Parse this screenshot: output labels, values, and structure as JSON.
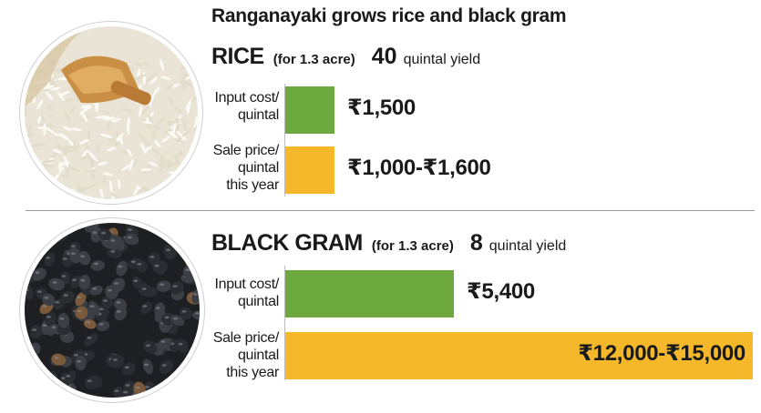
{
  "chart_data": {
    "type": "bar",
    "title": "Ranganayaki grows rice and black gram",
    "colors": {
      "input_cost": "#6ea93f",
      "sale_price": "#f6b82b"
    },
    "sections": [
      {
        "id": "rice",
        "crop": "RICE",
        "area": "(for 1.3 acre)",
        "yield": "40",
        "yield_unit": "quintal yield",
        "image": "rice-grains-photo",
        "rows": [
          {
            "label": [
              "Input cost/",
              "quintal"
            ],
            "value": 1500,
            "text": "₹1,500",
            "color": "#6ea93f"
          },
          {
            "label": [
              "Sale price/",
              "quintal",
              "this year"
            ],
            "value": [
              1000,
              1600
            ],
            "text": "₹1,000-₹1,600",
            "color": "#f6b82b"
          }
        ]
      },
      {
        "id": "black_gram",
        "crop": "BLACK GRAM",
        "area": "(for 1.3 acre)",
        "yield": "8",
        "yield_unit": "quintal yield",
        "image": "black-gram-photo",
        "rows": [
          {
            "label": [
              "Input cost/",
              "quintal"
            ],
            "value": 5400,
            "text": "₹5,400",
            "color": "#6ea93f"
          },
          {
            "label": [
              "Sale price/",
              "quintal",
              "this year"
            ],
            "value": [
              12000,
              15000
            ],
            "text": "₹12,000-₹15,000",
            "color": "#f6b82b"
          }
        ]
      }
    ]
  }
}
